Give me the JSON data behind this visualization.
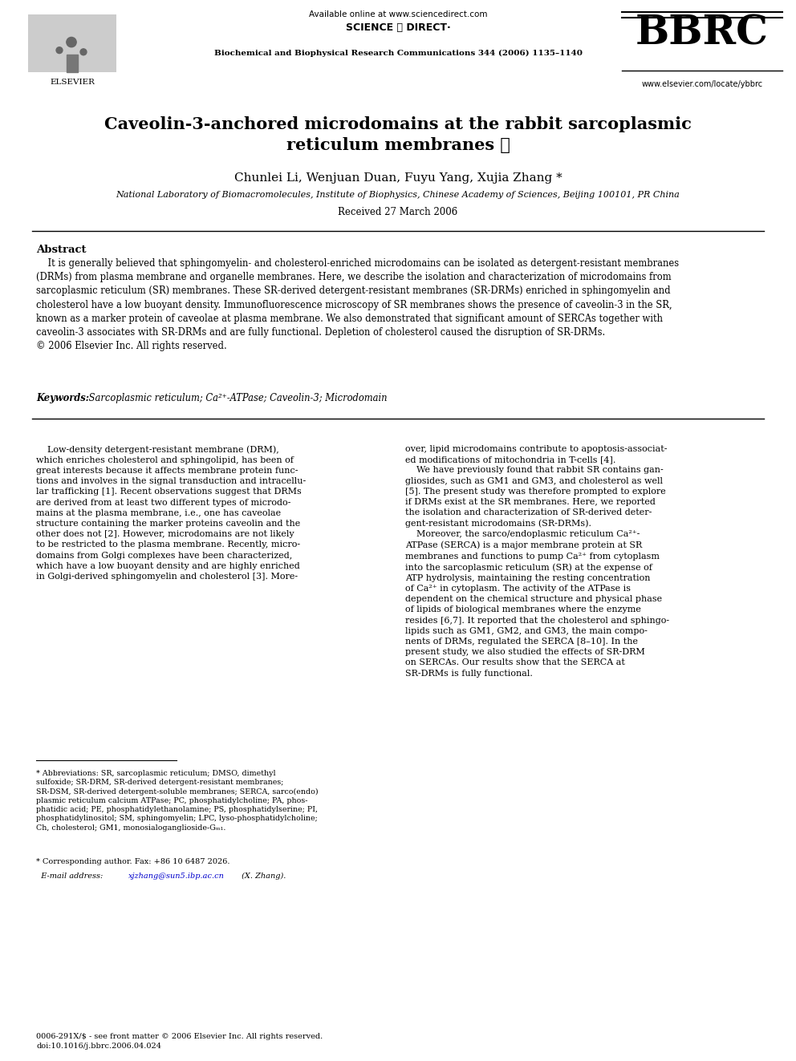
{
  "background_color": "#ffffff",
  "page_width": 9.92,
  "page_height": 13.23,
  "available_online": "Available online at www.sciencedirect.com",
  "science_direct": "SCIENCE ⓓ DIRECT·",
  "journal": "Biochemical and Biophysical Research Communications 344 (2006) 1135–1140",
  "bbrc": "BBRC",
  "website": "www.elsevier.com/locate/ybbrc",
  "elsevier_label": "ELSEVIER",
  "title": "Caveolin-3-anchored microdomains at the rabbit sarcoplasmic\nreticulum membranes ☆",
  "authors": "Chunlei Li, Wenjuan Duan, Fuyu Yang, Xujia Zhang *",
  "affiliation": "National Laboratory of Biomacromolecules, Institute of Biophysics, Chinese Academy of Sciences, Beijing 100101, PR China",
  "received": "Received 27 March 2006",
  "abstract_title": "Abstract",
  "abstract_text": "    It is generally believed that sphingomyelin- and cholesterol-enriched microdomains can be isolated as detergent-resistant membranes\n(DRMs) from plasma membrane and organelle membranes. Here, we describe the isolation and characterization of microdomains from\nsarcoplasmic reticulum (SR) membranes. These SR-derived detergent-resistant membranes (SR-DRMs) enriched in sphingomyelin and\ncholesterol have a low buoyant density. Immunofluorescence microscopy of SR membranes shows the presence of caveolin-3 in the SR,\nknown as a marker protein of caveolae at plasma membrane. We also demonstrated that significant amount of SERCAs together with\ncaveolin-3 associates with SR-DRMs and are fully functional. Depletion of cholesterol caused the disruption of SR-DRMs.\n© 2006 Elsevier Inc. All rights reserved.",
  "keywords_label": "Keywords: ",
  "keywords_text": " Sarcoplasmic reticulum; Ca²⁺-ATPase; Caveolin-3; Microdomain",
  "col1_text": "    Low-density detergent-resistant membrane (DRM),\nwhich enriches cholesterol and sphingolipid, has been of\ngreat interests because it affects membrane protein func-\ntions and involves in the signal transduction and intracellu-\nlar trafficking [1]. Recent observations suggest that DRMs\nare derived from at least two different types of microdo-\nmains at the plasma membrane, i.e., one has caveolae\nstructure containing the marker proteins caveolin and the\nother does not [2]. However, microdomains are not likely\nto be restricted to the plasma membrane. Recently, micro-\ndomains from Golgi complexes have been characterized,\nwhich have a low buoyant density and are highly enriched\nin Golgi-derived sphingomyelin and cholesterol [3]. More-",
  "col2_text": "over, lipid microdomains contribute to apoptosis-associat-\ned modifications of mitochondria in T-cells [4].\n    We have previously found that rabbit SR contains gan-\ngliosides, such as GM1 and GM3, and cholesterol as well\n[5]. The present study was therefore prompted to explore\nif DRMs exist at the SR membranes. Here, we reported\nthe isolation and characterization of SR-derived deter-\ngent-resistant microdomains (SR-DRMs).\n    Moreover, the sarco/endoplasmic reticulum Ca²⁺-\nATPase (SERCA) is a major membrane protein at SR\nmembranes and functions to pump Ca²⁺ from cytoplasm\ninto the sarcoplasmic reticulum (SR) at the expense of\nATP hydrolysis, maintaining the resting concentration\nof Ca²⁺ in cytoplasm. The activity of the ATPase is\ndependent on the chemical structure and physical phase\nof lipids of biological membranes where the enzyme\nresides [6,7]. It reported that the cholesterol and sphingo-\nlipids such as GM1, GM2, and GM3, the main compo-\nnents of DRMs, regulated the SERCA [8–10]. In the\npresent study, we also studied the effects of SR-DRM\non SERCAs. Our results show that the SERCA at\nSR-DRMs is fully functional.",
  "footnote_star_text": "* Abbreviations: SR, sarcoplasmic reticulum; DMSO, dimethyl\nsulfoxide; SR-DRM, SR-derived detergent-resistant membranes;\nSR-DSM, SR-derived detergent-soluble membranes; SERCA, sarco(endo)\nplasmic reticulum calcium ATPase; PC, phosphatidylcholine; PA, phos-\nphatidic acid; PE, phosphatidylethanolamine; PS, phosphatidylserine; PI,\nphosphatidylinositol; SM, sphingomyelin; LPC, lyso-phosphatidylcholine;\nCh, cholesterol; GM1, monosialoganglioside-Gₘ₁.",
  "footnote_corr1": "* Corresponding author. Fax: +86 10 6487 2026.",
  "footnote_corr2": "  E-mail address: xjzhang@sun5.ibp.ac.cn (X. Zhang).",
  "footnote_email": "xjzhang@sun5.ibp.ac.cn",
  "footer": "0006-291X/$ - see front matter © 2006 Elsevier Inc. All rights reserved.\ndoi:10.1016/j.bbrc.2006.04.024"
}
